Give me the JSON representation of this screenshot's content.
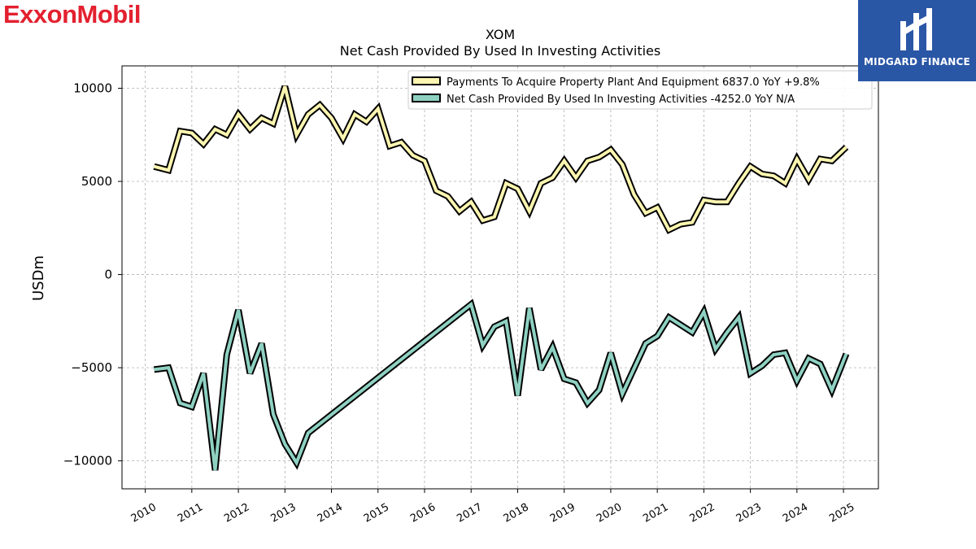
{
  "brand": {
    "logo_text": "ExxonMobil",
    "accent_color": "#e3202f"
  },
  "badge": {
    "text": "MIDGARD FINANCE",
    "bg_color": "#2a56a6"
  },
  "chart_data": {
    "type": "line",
    "title": "XOM",
    "subtitle": "Net Cash Provided By Used In Investing Activities",
    "xlabel": "",
    "ylabel": "USDm",
    "xlim": [
      2009.5,
      2025.75
    ],
    "ylim": [
      -11500,
      11200
    ],
    "yticks": [
      10000,
      5000,
      0,
      -5000,
      -10000
    ],
    "ytick_labels": [
      "10000",
      "5000",
      "0",
      "−5000",
      "−10000"
    ],
    "xticks": [
      2010,
      2011,
      2012,
      2013,
      2014,
      2015,
      2016,
      2017,
      2018,
      2019,
      2020,
      2021,
      2022,
      2023,
      2024,
      2025
    ],
    "xtick_labels": [
      "2010",
      "2011",
      "2012",
      "2013",
      "2014",
      "2015",
      "2016",
      "2017",
      "2018",
      "2019",
      "2020",
      "2021",
      "2022",
      "2023",
      "2024",
      "2025"
    ],
    "grid": true,
    "legend_position": "top-right",
    "series": [
      {
        "name": "Payments To Acquire Property Plant And Equipment",
        "legend_label": "Payments To Acquire Property Plant And Equipment  6837.0 YoY +9.8%",
        "color": "#fdf6b0",
        "points": [
          [
            2010.19,
            5800
          ],
          [
            2010.5,
            5600
          ],
          [
            2010.75,
            7700
          ],
          [
            2011.0,
            7600
          ],
          [
            2011.25,
            7000
          ],
          [
            2011.5,
            7800
          ],
          [
            2011.75,
            7500
          ],
          [
            2012.0,
            8600
          ],
          [
            2012.25,
            7800
          ],
          [
            2012.5,
            8400
          ],
          [
            2012.75,
            8100
          ],
          [
            2013.0,
            10100
          ],
          [
            2013.25,
            7500
          ],
          [
            2013.5,
            8600
          ],
          [
            2013.75,
            9100
          ],
          [
            2014.0,
            8400
          ],
          [
            2014.25,
            7300
          ],
          [
            2014.5,
            8600
          ],
          [
            2014.75,
            8200
          ],
          [
            2015.0,
            8900
          ],
          [
            2015.25,
            6900
          ],
          [
            2015.5,
            7100
          ],
          [
            2015.75,
            6400
          ],
          [
            2016.0,
            6100
          ],
          [
            2016.25,
            4500
          ],
          [
            2016.5,
            4200
          ],
          [
            2016.75,
            3400
          ],
          [
            2017.0,
            3900
          ],
          [
            2017.25,
            2900
          ],
          [
            2017.5,
            3100
          ],
          [
            2017.75,
            4900
          ],
          [
            2018.0,
            4600
          ],
          [
            2018.25,
            3400
          ],
          [
            2018.5,
            4900
          ],
          [
            2018.75,
            5200
          ],
          [
            2019.0,
            6100
          ],
          [
            2019.25,
            5200
          ],
          [
            2019.5,
            6100
          ],
          [
            2019.75,
            6300
          ],
          [
            2020.0,
            6700
          ],
          [
            2020.25,
            5900
          ],
          [
            2020.5,
            4300
          ],
          [
            2020.75,
            3300
          ],
          [
            2021.0,
            3600
          ],
          [
            2021.25,
            2400
          ],
          [
            2021.5,
            2700
          ],
          [
            2021.75,
            2800
          ],
          [
            2022.0,
            4000
          ],
          [
            2022.25,
            3900
          ],
          [
            2022.5,
            3900
          ],
          [
            2022.75,
            4900
          ],
          [
            2023.0,
            5800
          ],
          [
            2023.25,
            5400
          ],
          [
            2023.5,
            5300
          ],
          [
            2023.75,
            4900
          ],
          [
            2024.0,
            6200
          ],
          [
            2024.25,
            5100
          ],
          [
            2024.5,
            6200
          ],
          [
            2024.75,
            6100
          ],
          [
            2025.06,
            6837
          ]
        ]
      },
      {
        "name": "Net Cash Provided By Used In Investing Activities",
        "legend_label": "Net Cash Provided By Used In Investing Activities  -4252.0 YoY N/A",
        "color": "#8ed1c2",
        "points": [
          [
            2010.19,
            -5100
          ],
          [
            2010.5,
            -5000
          ],
          [
            2010.75,
            -6900
          ],
          [
            2011.0,
            -7100
          ],
          [
            2011.25,
            -5300
          ],
          [
            2011.5,
            -10500
          ],
          [
            2011.75,
            -4300
          ],
          [
            2012.0,
            -1900
          ],
          [
            2012.25,
            -5300
          ],
          [
            2012.5,
            -3700
          ],
          [
            2012.75,
            -7500
          ],
          [
            2013.0,
            -9100
          ],
          [
            2013.25,
            -10100
          ],
          [
            2013.5,
            -8500
          ],
          [
            2017.0,
            -1600
          ],
          [
            2017.25,
            -3800
          ],
          [
            2017.5,
            -2800
          ],
          [
            2017.75,
            -2500
          ],
          [
            2018.0,
            -6500
          ],
          [
            2018.25,
            -1800
          ],
          [
            2018.5,
            -5100
          ],
          [
            2018.75,
            -3900
          ],
          [
            2019.0,
            -5600
          ],
          [
            2019.25,
            -5800
          ],
          [
            2019.5,
            -6900
          ],
          [
            2019.75,
            -6200
          ],
          [
            2020.0,
            -4200
          ],
          [
            2020.25,
            -6400
          ],
          [
            2020.75,
            -3700
          ],
          [
            2021.0,
            -3300
          ],
          [
            2021.25,
            -2300
          ],
          [
            2021.5,
            -2700
          ],
          [
            2021.75,
            -3100
          ],
          [
            2022.0,
            -2000
          ],
          [
            2022.25,
            -4000
          ],
          [
            2022.5,
            -3100
          ],
          [
            2022.75,
            -2300
          ],
          [
            2023.0,
            -5300
          ],
          [
            2023.25,
            -4900
          ],
          [
            2023.5,
            -4300
          ],
          [
            2023.75,
            -4200
          ],
          [
            2024.0,
            -5700
          ],
          [
            2024.25,
            -4500
          ],
          [
            2024.5,
            -4800
          ],
          [
            2024.75,
            -6200
          ],
          [
            2025.06,
            -4252
          ]
        ]
      }
    ]
  }
}
